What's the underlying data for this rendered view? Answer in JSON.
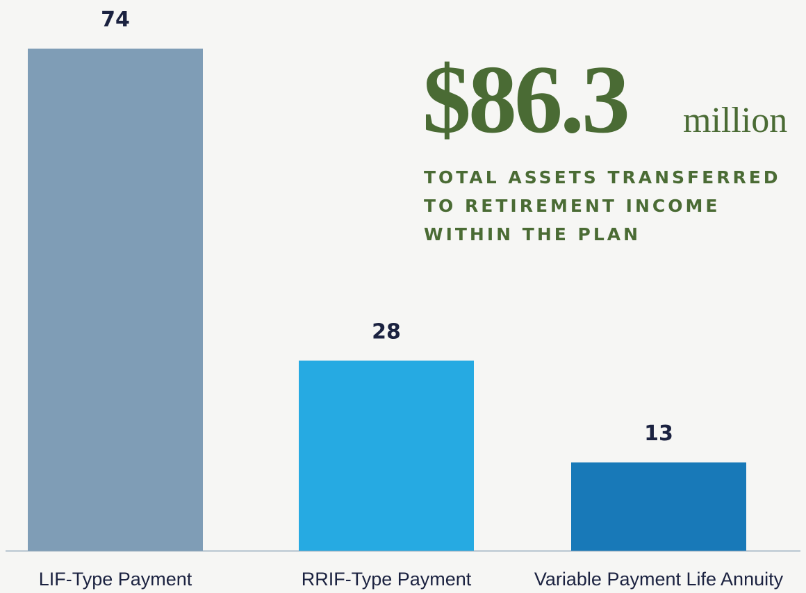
{
  "chart_data": {
    "type": "bar",
    "categories": [
      "LIF-Type Payment",
      "RRIF-Type Payment",
      "Variable Payment Life Annuity"
    ],
    "values": [
      74,
      28,
      13
    ],
    "colors": [
      "#7f9db6",
      "#26aae2",
      "#1879b8"
    ],
    "annotation": {
      "amount": "$86.3",
      "unit": "million",
      "lines": [
        "TOTAL ASSETS TRANSFERRED",
        "TO RETIREMENT INCOME",
        "WITHIN THE PLAN"
      ]
    }
  }
}
